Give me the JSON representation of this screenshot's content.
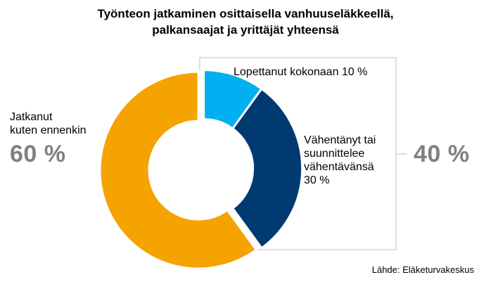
{
  "title_line1": "Työnteon jatkaminen osittaisella vanhuuseläkkeellä,",
  "title_line2": "palkansaajat ja yrittäjät yhteensä",
  "chart_data": {
    "type": "pie",
    "title": "Työnteon jatkaminen osittaisella vanhuuseläkkeellä, palkansaajat ja yrittäjät yhteensä",
    "slices": [
      {
        "label": "Lopettanut kokonaan",
        "value": 10,
        "color": "#00b0f0"
      },
      {
        "label": "Vähentänyt tai suunnittelee vähentävänsä",
        "value": 30,
        "color": "#003a70"
      },
      {
        "label": "Jatkanut kuten ennenkin",
        "value": 60,
        "color": "#f5a300"
      }
    ],
    "group_total": {
      "label": "40 %",
      "members": [
        "Lopettanut kokonaan",
        "Vähentänyt tai suunnittelee vähentävänsä"
      ]
    }
  },
  "labels": {
    "lopettanut": "Lopettanut kokonaan 10 %",
    "vahentanyt_1": "Vähentänyt tai",
    "vahentanyt_2": "suunnittelee",
    "vahentanyt_3": "vähentävänsä",
    "vahentanyt_4": "30 %",
    "jatkanut_1": "Jatkanut",
    "jatkanut_2": "kuten ennenkin",
    "jatkanut_pct": "60 %",
    "group_pct": "40 %"
  },
  "source": "Lähde: Eläketurvakeskus"
}
